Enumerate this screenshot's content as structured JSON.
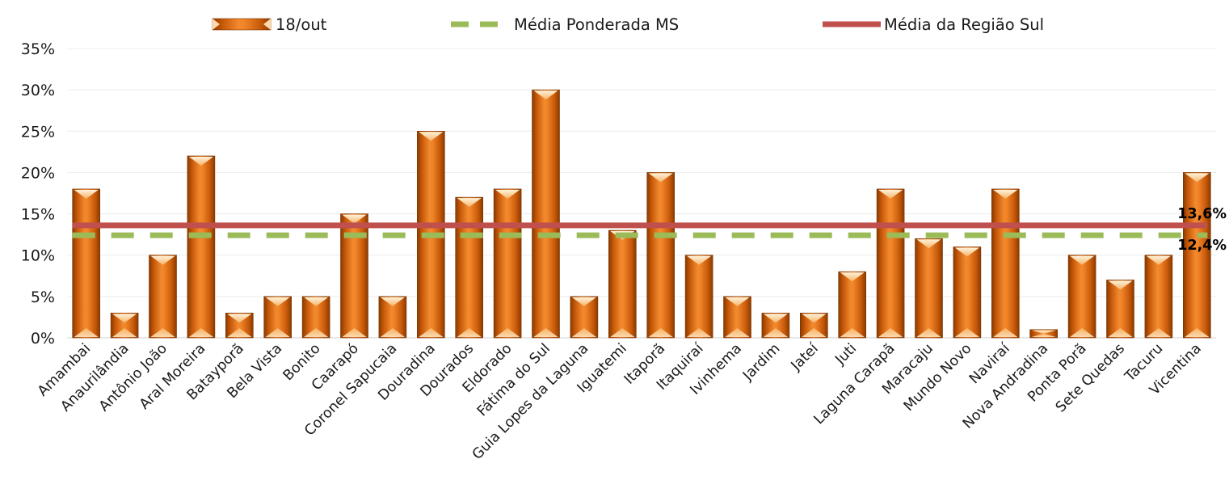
{
  "chart_data": {
    "type": "bar",
    "title": "",
    "xlabel": "",
    "ylabel": "",
    "ylim": [
      0,
      35
    ],
    "y_ticks": [
      "0%",
      "5%",
      "10%",
      "15%",
      "20%",
      "25%",
      "30%",
      "35%"
    ],
    "y_tick_values": [
      0,
      5,
      10,
      15,
      20,
      25,
      30,
      35
    ],
    "grid": true,
    "legend_position": "top",
    "categories": [
      "Amambai",
      "Anaurilândia",
      "Antônio João",
      "Aral Moreira",
      "Batayporã",
      "Bela Vista",
      "Bonito",
      "Caarapó",
      "Coronel Sapucaia",
      "Douradina",
      "Dourados",
      "Eldorado",
      "Fátima do Sul",
      "Guia Lopes da Laguna",
      "Iguatemi",
      "Itaporã",
      "Itaquiraí",
      "Ivinhema",
      "Jardim",
      "Jateí",
      "Juti",
      "Laguna Carapã",
      "Maracaju",
      "Mundo Novo",
      "Naviraí",
      "Nova Andradina",
      "Ponta Porã",
      "Sete Quedas",
      "Tacuru",
      "Vicentina"
    ],
    "series": [
      {
        "name": "18/out",
        "kind": "bar",
        "color": "#E46C0A",
        "values": [
          18,
          3,
          10,
          22,
          3,
          5,
          5,
          15,
          5,
          25,
          17,
          18,
          30,
          5,
          13,
          20,
          10,
          5,
          3,
          3,
          8,
          18,
          12,
          11,
          18,
          1,
          10,
          7,
          10,
          20
        ]
      },
      {
        "name": "Média Ponderada MS",
        "kind": "line",
        "style": "dashed",
        "color": "#9BBB59",
        "value": 12.4,
        "label": "12,4%"
      },
      {
        "name": "Média da Região Sul",
        "kind": "line",
        "style": "solid",
        "color": "#C0504D",
        "value": 13.6,
        "label": "13,6%"
      }
    ]
  }
}
